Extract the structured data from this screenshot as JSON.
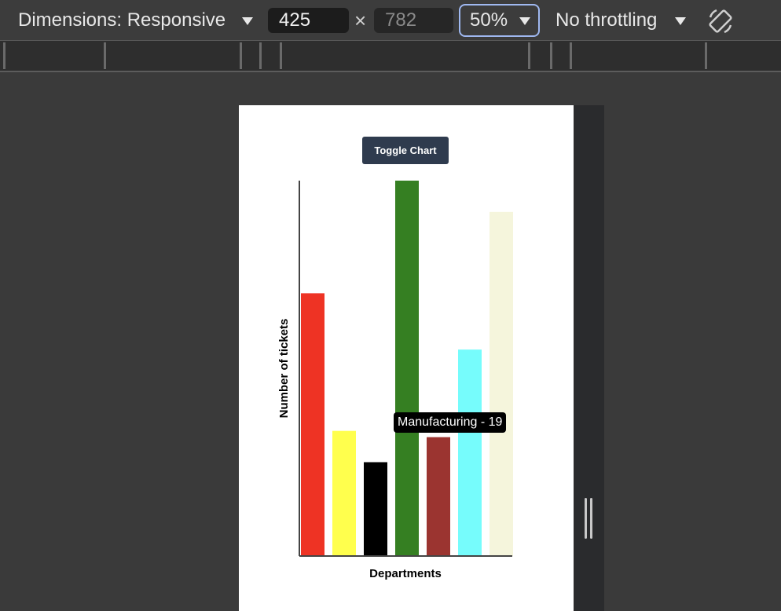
{
  "devtools": {
    "dimensions_label": "Dimensions: Responsive",
    "width": "425",
    "height": "782",
    "times": "×",
    "zoom": "50%",
    "throttling": "No throttling",
    "rotate_icon": "rotate-icon"
  },
  "page": {
    "toggle_button": "Toggle Chart",
    "tooltip": "Manufacturing - 19"
  },
  "chart_data": {
    "type": "bar",
    "title": "",
    "xlabel": "Departments",
    "ylabel": "Number of tickets",
    "categories": [
      "",
      "",
      "",
      "",
      "",
      "",
      ""
    ],
    "values": [
      42,
      20,
      15,
      60,
      19,
      33,
      55
    ],
    "colors": [
      "#ee3324",
      "#ffff4d",
      "#000000",
      "#357f22",
      "#9b3430",
      "#76fcfc",
      "#f5f5dc"
    ],
    "ylim": [
      0,
      60
    ],
    "grid": false,
    "legend": "none"
  }
}
